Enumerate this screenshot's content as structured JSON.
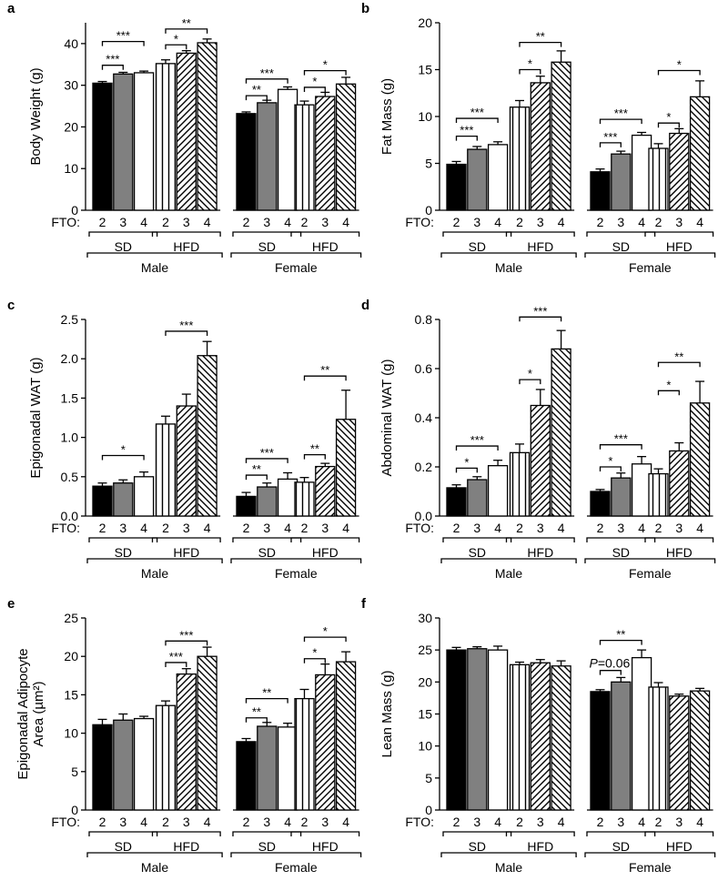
{
  "figure": {
    "fto_label": "FTO:",
    "fto_levels": [
      "2",
      "3",
      "4",
      "2",
      "3",
      "4",
      "2",
      "3",
      "4",
      "2",
      "3",
      "4"
    ],
    "diet_labels": [
      "SD",
      "HFD",
      "SD",
      "HFD"
    ],
    "sex_labels": [
      "Male",
      "Female"
    ]
  },
  "colors": {
    "fto2": "#000000",
    "fto3": "#808080",
    "fto4": "#ffffff",
    "stroke": "#000000"
  },
  "chart_data": [
    {
      "id": "a",
      "type": "bar",
      "label": "a",
      "ylabel": "Body Weight (g)",
      "ylim": [
        0,
        45
      ],
      "yticks": [
        0,
        10,
        20,
        30,
        40
      ],
      "groups": [
        "Male SD",
        "Male HFD",
        "Female SD",
        "Female HFD"
      ],
      "values": [
        [
          30.5,
          32.7,
          33.0
        ],
        [
          35.2,
          37.7,
          40.2
        ],
        [
          23.2,
          25.8,
          29.0
        ],
        [
          25.3,
          27.3,
          30.3
        ]
      ],
      "errors": [
        [
          0.4,
          0.4,
          0.4
        ],
        [
          0.9,
          0.6,
          0.9
        ],
        [
          0.4,
          0.6,
          0.6
        ],
        [
          0.9,
          1.0,
          1.6
        ]
      ],
      "significance": [
        {
          "group": 0,
          "from": 0,
          "to": 1,
          "label": "***",
          "y": 34.8
        },
        {
          "group": 0,
          "from": 0,
          "to": 2,
          "label": "***",
          "y": 40.5
        },
        {
          "group": 1,
          "from": 0,
          "to": 1,
          "label": "*",
          "y": 39.7
        },
        {
          "group": 1,
          "from": 0,
          "to": 2,
          "label": "**",
          "y": 43.5
        },
        {
          "group": 2,
          "from": 0,
          "to": 1,
          "label": "**",
          "y": 27.5
        },
        {
          "group": 2,
          "from": 0,
          "to": 2,
          "label": "***",
          "y": 31.5
        },
        {
          "group": 3,
          "from": 0,
          "to": 1,
          "label": "*",
          "y": 29.5
        },
        {
          "group": 3,
          "from": 0,
          "to": 2,
          "label": "*",
          "y": 33.5
        }
      ]
    },
    {
      "id": "b",
      "type": "bar",
      "label": "b",
      "ylabel": "Fat Mass (g)",
      "ylim": [
        0,
        20
      ],
      "yticks": [
        0,
        5,
        10,
        15,
        20
      ],
      "groups": [
        "Male SD",
        "Male HFD",
        "Female SD",
        "Female HFD"
      ],
      "values": [
        [
          4.9,
          6.5,
          7.0
        ],
        [
          11.0,
          13.6,
          15.8
        ],
        [
          4.1,
          6.0,
          8.0
        ],
        [
          6.6,
          8.2,
          12.1
        ]
      ],
      "errors": [
        [
          0.3,
          0.3,
          0.3
        ],
        [
          0.7,
          0.7,
          1.2
        ],
        [
          0.3,
          0.3,
          0.3
        ],
        [
          0.5,
          0.5,
          1.7
        ]
      ],
      "significance": [
        {
          "group": 0,
          "from": 0,
          "to": 1,
          "label": "***",
          "y": 7.9
        },
        {
          "group": 0,
          "from": 0,
          "to": 2,
          "label": "***",
          "y": 9.8
        },
        {
          "group": 1,
          "from": 0,
          "to": 1,
          "label": "*",
          "y": 15.0
        },
        {
          "group": 1,
          "from": 0,
          "to": 2,
          "label": "**",
          "y": 17.9
        },
        {
          "group": 2,
          "from": 0,
          "to": 1,
          "label": "***",
          "y": 7.2
        },
        {
          "group": 2,
          "from": 0,
          "to": 2,
          "label": "***",
          "y": 9.7
        },
        {
          "group": 3,
          "from": 0,
          "to": 1,
          "label": "*",
          "y": 9.3
        },
        {
          "group": 3,
          "from": 0,
          "to": 2,
          "label": "*",
          "y": 14.9
        }
      ]
    },
    {
      "id": "c",
      "type": "bar",
      "label": "c",
      "ylabel": "Epigonadal WAT (g)",
      "ylim": [
        0,
        2.5
      ],
      "yticks": [
        0,
        0.5,
        1.0,
        1.5,
        2.0,
        2.5
      ],
      "ytick_labels": [
        "0.0",
        "0.5",
        "1.0",
        "1.5",
        "2.0",
        "2.5"
      ],
      "groups": [
        "Male SD",
        "Male HFD",
        "Female SD",
        "Female HFD"
      ],
      "values": [
        [
          0.38,
          0.42,
          0.5
        ],
        [
          1.17,
          1.4,
          2.04
        ],
        [
          0.25,
          0.37,
          0.47
        ],
        [
          0.43,
          0.63,
          1.23
        ]
      ],
      "errors": [
        [
          0.04,
          0.04,
          0.06
        ],
        [
          0.1,
          0.15,
          0.18
        ],
        [
          0.05,
          0.05,
          0.08
        ],
        [
          0.06,
          0.04,
          0.37
        ]
      ],
      "significance": [
        {
          "group": 0,
          "from": 0,
          "to": 2,
          "label": "*",
          "y": 0.77
        },
        {
          "group": 1,
          "from": 0,
          "to": 2,
          "label": "***",
          "y": 2.35
        },
        {
          "group": 2,
          "from": 0,
          "to": 1,
          "label": "**",
          "y": 0.52
        },
        {
          "group": 2,
          "from": 0,
          "to": 2,
          "label": "***",
          "y": 0.73
        },
        {
          "group": 3,
          "from": 0,
          "to": 1,
          "label": "**",
          "y": 0.78
        },
        {
          "group": 3,
          "from": 0,
          "to": 2,
          "label": "**",
          "y": 1.78
        }
      ]
    },
    {
      "id": "d",
      "type": "bar",
      "label": "d",
      "ylabel": "Abdominal WAT (g)",
      "ylim": [
        0,
        0.8
      ],
      "yticks": [
        0,
        0.2,
        0.4,
        0.6,
        0.8
      ],
      "ytick_labels": [
        "0.0",
        "0.2",
        "0.4",
        "0.6",
        "0.8"
      ],
      "groups": [
        "Male SD",
        "Male HFD",
        "Female SD",
        "Female HFD"
      ],
      "values": [
        [
          0.115,
          0.148,
          0.205
        ],
        [
          0.258,
          0.45,
          0.68
        ],
        [
          0.1,
          0.155,
          0.212
        ],
        [
          0.172,
          0.265,
          0.46
        ]
      ],
      "errors": [
        [
          0.012,
          0.012,
          0.022
        ],
        [
          0.035,
          0.065,
          0.075
        ],
        [
          0.008,
          0.02,
          0.03
        ],
        [
          0.02,
          0.033,
          0.088
        ]
      ],
      "significance": [
        {
          "group": 0,
          "from": 0,
          "to": 1,
          "label": "*",
          "y": 0.195
        },
        {
          "group": 0,
          "from": 0,
          "to": 2,
          "label": "***",
          "y": 0.285
        },
        {
          "group": 1,
          "from": 0,
          "to": 1,
          "label": "*",
          "y": 0.555
        },
        {
          "group": 1,
          "from": 0,
          "to": 2,
          "label": "***",
          "y": 0.81
        },
        {
          "group": 2,
          "from": 0,
          "to": 1,
          "label": "*",
          "y": 0.2
        },
        {
          "group": 2,
          "from": 0,
          "to": 2,
          "label": "***",
          "y": 0.29
        },
        {
          "group": 3,
          "from": 0,
          "to": 1,
          "label": "*",
          "y": 0.51
        },
        {
          "group": 3,
          "from": 0,
          "to": 2,
          "label": "**",
          "y": 0.625
        }
      ]
    },
    {
      "id": "e",
      "type": "bar",
      "label": "e",
      "ylabel": "Epigonadal Adipocyte Area (µm²)",
      "ylabel_lines": [
        "Epigonadal Adipocyte",
        "Area (µm²)"
      ],
      "ylim": [
        0,
        25
      ],
      "yticks": [
        0,
        5,
        10,
        15,
        20,
        25
      ],
      "groups": [
        "Male SD",
        "Male HFD",
        "Female SD",
        "Female HFD"
      ],
      "values": [
        [
          11.1,
          11.7,
          11.9
        ],
        [
          13.6,
          17.7,
          20.0
        ],
        [
          8.9,
          10.9,
          10.8
        ],
        [
          14.5,
          17.6,
          19.3
        ]
      ],
      "errors": [
        [
          0.7,
          0.8,
          0.3
        ],
        [
          0.6,
          0.7,
          1.2
        ],
        [
          0.4,
          0.5,
          0.5
        ],
        [
          1.2,
          1.4,
          1.3
        ]
      ],
      "significance": [
        {
          "group": 1,
          "from": 0,
          "to": 1,
          "label": "***",
          "y": 19.2
        },
        {
          "group": 1,
          "from": 0,
          "to": 2,
          "label": "***",
          "y": 22.0
        },
        {
          "group": 2,
          "from": 0,
          "to": 1,
          "label": "**",
          "y": 12.0
        },
        {
          "group": 2,
          "from": 0,
          "to": 2,
          "label": "**",
          "y": 14.5
        },
        {
          "group": 3,
          "from": 0,
          "to": 1,
          "label": "*",
          "y": 19.7
        },
        {
          "group": 3,
          "from": 0,
          "to": 2,
          "label": "*",
          "y": 22.5
        }
      ]
    },
    {
      "id": "f",
      "type": "bar",
      "label": "f",
      "ylabel": "Lean Mass (g)",
      "ylim": [
        0,
        30
      ],
      "yticks": [
        0,
        5,
        10,
        15,
        20,
        25,
        30
      ],
      "groups": [
        "Male SD",
        "Male HFD",
        "Female SD",
        "Female HFD"
      ],
      "values": [
        [
          25.0,
          25.2,
          25.0
        ],
        [
          22.7,
          23.0,
          22.5
        ],
        [
          18.5,
          20.0,
          23.8
        ],
        [
          19.2,
          17.8,
          18.6
        ]
      ],
      "errors": [
        [
          0.4,
          0.3,
          0.6
        ],
        [
          0.4,
          0.5,
          0.8
        ],
        [
          0.3,
          0.7,
          1.2
        ],
        [
          0.7,
          0.3,
          0.4
        ]
      ],
      "significance": [
        {
          "group": 2,
          "from": 0,
          "to": 1,
          "label": "=0.06",
          "prefix": "P",
          "y": 21.8
        },
        {
          "group": 2,
          "from": 0,
          "to": 2,
          "label": "**",
          "y": 26.5
        }
      ]
    }
  ]
}
